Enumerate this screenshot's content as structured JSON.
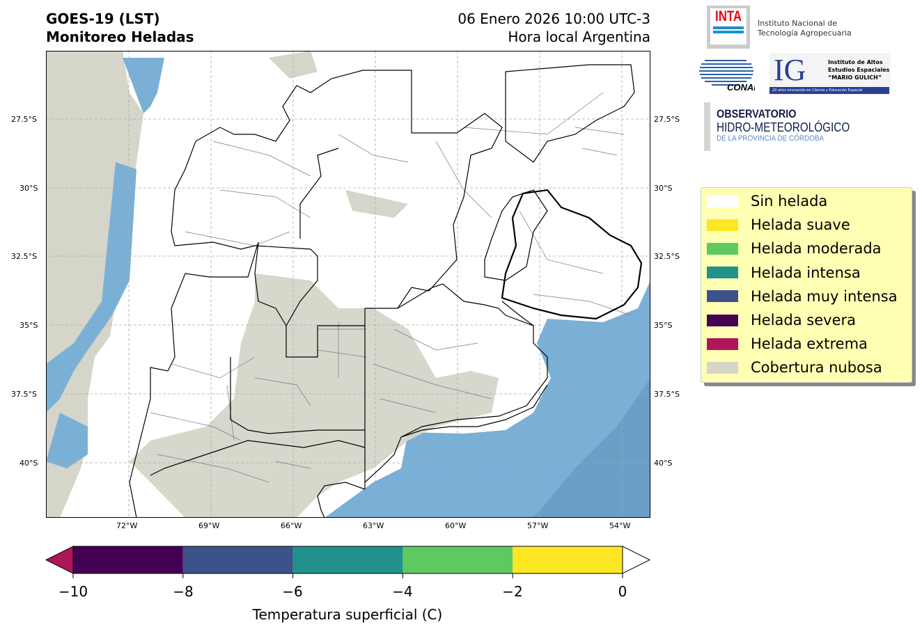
{
  "header": {
    "title_line1": "GOES-19 (LST)",
    "title_line2": "Monitoreo Heladas",
    "date": "06 Enero 2026 10:00 UTC-3",
    "timezone": "Hora local Argentina"
  },
  "logos": {
    "inta": {
      "mark": "INTA",
      "name_line1": "Instituto Nacional de",
      "name_line2": "Tecnología Agropecuaria"
    },
    "conae": {
      "mark": "CONAE"
    },
    "ig": {
      "mark": "IG",
      "line1": "Instituto de Altos",
      "line2": "Estudios Espaciales",
      "line3": "“MARIO GULICH”",
      "tagline": "20 años innovando en Ciencia y Educación Espacial"
    },
    "observatorio": {
      "line1": "OBSERVATORIO",
      "line2": "HIDRO-METEOROLÓGICO",
      "line3": "DE LA PROVINCIA DE CÓRDOBA"
    }
  },
  "map": {
    "lat_ticks": [
      "27.5°S",
      "30°S",
      "32.5°S",
      "35°S",
      "37.5°S",
      "40°S"
    ],
    "lon_ticks": [
      "72°W",
      "69°W",
      "66°W",
      "63°W",
      "60°W",
      "57°W",
      "54°W"
    ]
  },
  "legend": {
    "items": [
      {
        "label": "Sin helada",
        "color": "#ffffff"
      },
      {
        "label": "Helada suave",
        "color": "#fde725"
      },
      {
        "label": "Helada moderada",
        "color": "#5ec962"
      },
      {
        "label": "Helada intensa",
        "color": "#21918c"
      },
      {
        "label": "Helada muy intensa",
        "color": "#3b528b"
      },
      {
        "label": "Helada severa",
        "color": "#440154"
      },
      {
        "label": "Helada extrema",
        "color": "#ad1759"
      },
      {
        "label": "Cobertura nubosa",
        "color": "#d6d5c9"
      }
    ]
  },
  "colorbar": {
    "label": "Temperatura superficial (C)",
    "ticks": [
      "−10",
      "−8",
      "−6",
      "−4",
      "−2",
      "0"
    ],
    "segments": [
      "#440154",
      "#3b528b",
      "#21918c",
      "#5ec962",
      "#fde725"
    ],
    "under_color": "#ad1759",
    "over_color": "#ffffff"
  }
}
